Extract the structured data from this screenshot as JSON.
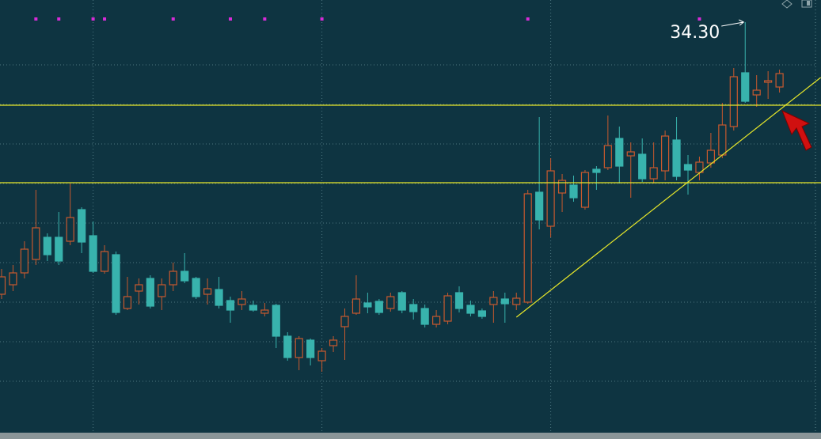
{
  "chart_data": {
    "type": "candlestick",
    "candles": {
      "open": [
        30.86,
        30.98,
        31.13,
        31.3,
        31.58,
        31.58,
        31.53,
        31.93,
        31.6,
        31.15,
        31.36,
        30.68,
        30.9,
        31.06,
        30.83,
        30.98,
        31.15,
        31.06,
        30.86,
        30.92,
        30.78,
        30.73,
        30.72,
        30.62,
        30.72,
        30.33,
        30.06,
        30.28,
        30.02,
        30.21,
        30.45,
        30.62,
        30.75,
        30.77,
        30.68,
        30.88,
        30.73,
        30.68,
        30.48,
        30.52,
        30.88,
        30.72,
        30.65,
        30.73,
        30.8,
        30.73,
        30.76,
        32.15,
        31.72,
        32.14,
        32.24,
        31.96,
        32.44,
        32.46,
        32.83,
        32.61,
        32.63,
        32.32,
        32.42,
        32.81,
        32.5,
        32.4,
        32.52,
        32.62,
        32.98,
        33.66,
        33.38,
        33.54,
        33.48
      ],
      "high": [
        31.18,
        31.23,
        31.53,
        32.18,
        31.63,
        31.9,
        32.26,
        31.96,
        31.78,
        31.48,
        31.4,
        31.08,
        31.06,
        31.1,
        31.06,
        31.26,
        31.38,
        31.08,
        31.06,
        31.08,
        30.83,
        30.9,
        30.78,
        30.75,
        30.74,
        30.38,
        30.33,
        30.3,
        30.18,
        30.33,
        30.68,
        31.1,
        30.88,
        30.8,
        30.88,
        30.9,
        30.8,
        30.73,
        30.66,
        30.88,
        30.96,
        30.78,
        30.68,
        30.9,
        30.88,
        30.88,
        32.18,
        33.1,
        32.58,
        32.38,
        32.36,
        32.43,
        32.48,
        33.12,
        32.98,
        32.78,
        32.83,
        32.78,
        32.93,
        33.1,
        32.62,
        32.6,
        32.9,
        33.28,
        33.72,
        34.3,
        33.63,
        33.68,
        33.7
      ],
      "low": [
        30.8,
        30.9,
        31.06,
        31.23,
        31.28,
        31.23,
        31.48,
        31.38,
        31.13,
        31.12,
        30.6,
        30.66,
        30.73,
        30.68,
        30.66,
        30.9,
        31.0,
        30.8,
        30.73,
        30.68,
        30.5,
        30.66,
        30.64,
        30.58,
        30.18,
        30.02,
        29.9,
        29.96,
        29.88,
        30.13,
        30.03,
        30.6,
        30.62,
        30.6,
        30.64,
        30.62,
        30.54,
        30.44,
        30.44,
        30.48,
        30.63,
        30.58,
        30.55,
        30.5,
        30.5,
        30.66,
        30.74,
        31.68,
        31.58,
        31.9,
        32.03,
        31.93,
        32.18,
        32.43,
        32.26,
        32.08,
        32.28,
        32.26,
        32.3,
        32.3,
        32.12,
        32.3,
        32.46,
        32.58,
        32.93,
        33.28,
        33.23,
        33.33,
        33.41
      ],
      "close": [
        31.08,
        31.13,
        31.43,
        31.7,
        31.36,
        31.28,
        31.83,
        31.52,
        31.15,
        31.4,
        30.63,
        30.83,
        30.98,
        30.71,
        30.98,
        31.15,
        31.03,
        30.83,
        30.93,
        30.72,
        30.66,
        30.8,
        30.66,
        30.66,
        30.33,
        30.06,
        30.3,
        30.06,
        30.14,
        30.28,
        30.58,
        30.8,
        30.7,
        30.63,
        30.83,
        30.66,
        30.64,
        30.48,
        30.58,
        30.84,
        30.68,
        30.62,
        30.58,
        30.82,
        30.74,
        30.81,
        32.13,
        31.8,
        32.42,
        32.3,
        32.08,
        32.4,
        32.4,
        32.74,
        32.48,
        32.66,
        32.32,
        32.46,
        32.86,
        32.35,
        32.43,
        32.53,
        32.68,
        33.0,
        33.61,
        33.3,
        33.44,
        33.56,
        33.65
      ]
    },
    "up_color": "#c8592e",
    "down_color": "#38b3ad",
    "ylim": [
      29.1,
      34.58
    ],
    "yticks": [
      29.76,
      30.26,
      30.76,
      31.26,
      31.76,
      32.26,
      32.76,
      33.26,
      33.76
    ],
    "xticks": [
      8,
      28,
      48
    ],
    "grid": true,
    "hlines": [
      33.25,
      32.27
    ],
    "line_color": "#e8e82a",
    "trendline": {
      "x": [
        45,
        71.6
      ],
      "y": [
        30.57,
        33.6
      ]
    },
    "event_markers": [
      3,
      5,
      8,
      9,
      15,
      20,
      23,
      28,
      46,
      61
    ],
    "event_color": "#d82bd8",
    "annotations": [
      {
        "text": "34.30",
        "x": 65,
        "y": 34.3
      }
    ]
  }
}
